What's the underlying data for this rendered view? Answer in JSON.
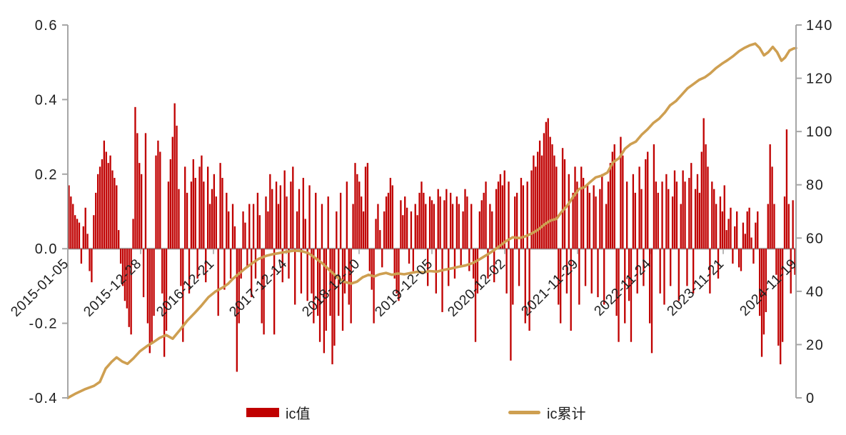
{
  "colors": {
    "bar": "#C00000",
    "line": "#CE9F51",
    "axis": "#A6A6A6",
    "text": "#1F1F1F",
    "background": "#FFFFFF"
  },
  "legend": {
    "bar_label": "ic值",
    "line_label": "ic累计"
  },
  "chart_data": {
    "type": "combo",
    "title": "",
    "legend_position": "bottom",
    "x_axis": {
      "tick_labels": [
        "2015-01-05",
        "2015-12-28",
        "2016-12-21",
        "2017-12-14",
        "2018-12-10",
        "2019-12-05",
        "2020-12-02",
        "2021-11-29",
        "2022-11-24",
        "2023-11-21",
        "2024-11-19"
      ],
      "label_rotation_deg": 45
    },
    "y_axis_left": {
      "min": -0.4,
      "max": 0.6,
      "step": 0.2,
      "tick_labels": [
        "0.6",
        "0.4",
        "0.2",
        "0.0",
        "-0.2",
        "-0.4"
      ]
    },
    "y_axis_right": {
      "min": 0,
      "max": 140,
      "step": 20,
      "tick_labels": [
        "140",
        "120",
        "100",
        "80",
        "60",
        "40",
        "20",
        "0"
      ]
    },
    "series": [
      {
        "name": "ic值",
        "type": "bar",
        "axis": "left",
        "color": "#C00000",
        "value_scale": 0.01,
        "values_x100": [
          17,
          14,
          12,
          9,
          8,
          7,
          -4,
          6,
          11,
          4,
          -6,
          -9,
          9,
          15,
          20,
          22,
          24,
          29,
          26,
          23,
          25,
          21,
          19,
          17,
          5,
          -4,
          -10,
          -14,
          -16,
          -21,
          -23,
          8,
          38,
          31,
          23,
          20,
          -13,
          31,
          -20,
          -28,
          -25,
          -18,
          25,
          29,
          26,
          -12,
          -29,
          -22,
          18,
          24,
          30,
          39,
          33,
          16,
          -10,
          -25,
          22,
          15,
          -12,
          18,
          24,
          19,
          -8,
          22,
          25,
          18,
          -9,
          22,
          12,
          16,
          20,
          14,
          -18,
          23,
          19,
          -11,
          15,
          10,
          -8,
          12,
          6,
          -33,
          -20,
          -8,
          10,
          7,
          -5,
          12,
          -13,
          12,
          -8,
          15,
          9,
          -20,
          -23,
          14,
          10,
          20,
          16,
          -23,
          18,
          12,
          17,
          -9,
          21,
          14,
          -8,
          18,
          22,
          -15,
          10,
          16,
          -12,
          19,
          8,
          -14,
          17,
          -12,
          -20,
          15,
          -18,
          -25,
          12,
          -28,
          -22,
          14,
          -18,
          -31,
          -26,
          10,
          -18,
          15,
          -22,
          -12,
          18,
          -15,
          -20,
          12,
          23,
          20,
          18,
          14,
          10,
          22,
          23,
          -6,
          -11,
          -20,
          8,
          12,
          5,
          -5,
          10,
          14,
          15,
          19,
          17,
          -8,
          -12,
          -14,
          13,
          9,
          14,
          11,
          -4,
          10,
          -6,
          12,
          9,
          15,
          18,
          15,
          12,
          -10,
          14,
          13,
          12,
          -12,
          16,
          14,
          -17,
          13,
          16,
          -10,
          15,
          12,
          -8,
          14,
          12,
          -5,
          10,
          16,
          14,
          -6,
          12,
          -8,
          -25,
          -12,
          10,
          13,
          15,
          18,
          -8,
          12,
          10,
          -9,
          16,
          18,
          20,
          17,
          21,
          -12,
          18,
          -30,
          -15,
          14,
          15,
          -10,
          19,
          17,
          -20,
          18,
          -22,
          21,
          25,
          22,
          26,
          29,
          25,
          31,
          34,
          35,
          30,
          28,
          25,
          22,
          -15,
          -20,
          27,
          24,
          -12,
          20,
          -22,
          15,
          22,
          18,
          -15,
          22,
          19,
          -10,
          17,
          15,
          -12,
          17,
          14,
          -13,
          16,
          20,
          -15,
          12,
          18,
          23,
          26,
          28,
          -18,
          -25,
          30,
          25,
          -20,
          18,
          -14,
          -25,
          20,
          15,
          -12,
          22,
          16,
          -10,
          24,
          26,
          -20,
          -28,
          28,
          18,
          15,
          -12,
          18,
          -15,
          20,
          16,
          -10,
          14,
          21,
          18,
          -14,
          12,
          21,
          18,
          -10,
          19,
          23,
          -12,
          16,
          20,
          15,
          26,
          35,
          28,
          22,
          -12,
          18,
          16,
          12,
          -8,
          14,
          10,
          17,
          5,
          8,
          11,
          -4,
          6,
          10,
          -5,
          -6,
          7,
          4,
          10,
          11,
          3,
          -4,
          7,
          10,
          -18,
          -29,
          -23,
          -17,
          12,
          28,
          22,
          12,
          -7,
          -26,
          -31,
          -25,
          14,
          32,
          12,
          -12,
          13,
          -7
        ]
      },
      {
        "name": "ic累计",
        "type": "line",
        "axis": "right",
        "color": "#CE9F51",
        "points_fx_value": [
          [
            0.0,
            0
          ],
          [
            0.01,
            1.5
          ],
          [
            0.023,
            3.2
          ],
          [
            0.036,
            4.5
          ],
          [
            0.044,
            6
          ],
          [
            0.052,
            11
          ],
          [
            0.06,
            13.5
          ],
          [
            0.067,
            15.2
          ],
          [
            0.075,
            13.6
          ],
          [
            0.082,
            12.8
          ],
          [
            0.09,
            14.8
          ],
          [
            0.099,
            17.5
          ],
          [
            0.109,
            19.5
          ],
          [
            0.118,
            21
          ],
          [
            0.126,
            22.5
          ],
          [
            0.135,
            23.6
          ],
          [
            0.144,
            22.2
          ],
          [
            0.154,
            25.5
          ],
          [
            0.164,
            29
          ],
          [
            0.174,
            31.8
          ],
          [
            0.183,
            34.5
          ],
          [
            0.193,
            37.8
          ],
          [
            0.203,
            40
          ],
          [
            0.213,
            41.5
          ],
          [
            0.22,
            42.8
          ],
          [
            0.227,
            44.8
          ],
          [
            0.235,
            46.6
          ],
          [
            0.243,
            48.5
          ],
          [
            0.252,
            50.3
          ],
          [
            0.262,
            52.2
          ],
          [
            0.272,
            53.3
          ],
          [
            0.281,
            53.9
          ],
          [
            0.291,
            54.4
          ],
          [
            0.301,
            54.9
          ],
          [
            0.311,
            55.3
          ],
          [
            0.321,
            55.1
          ],
          [
            0.33,
            54.4
          ],
          [
            0.34,
            52.5
          ],
          [
            0.35,
            50.4
          ],
          [
            0.36,
            47.8
          ],
          [
            0.37,
            45.3
          ],
          [
            0.379,
            43.6
          ],
          [
            0.389,
            42.9
          ],
          [
            0.397,
            43.6
          ],
          [
            0.405,
            45.3
          ],
          [
            0.413,
            46.2
          ],
          [
            0.421,
            45.6
          ],
          [
            0.428,
            46.4
          ],
          [
            0.437,
            46.9
          ],
          [
            0.445,
            46.2
          ],
          [
            0.453,
            46.7
          ],
          [
            0.462,
            46.4
          ],
          [
            0.471,
            46.9
          ],
          [
            0.479,
            47.3
          ],
          [
            0.488,
            47.1
          ],
          [
            0.497,
            47.6
          ],
          [
            0.507,
            47.4
          ],
          [
            0.517,
            48.1
          ],
          [
            0.527,
            48.6
          ],
          [
            0.536,
            49.2
          ],
          [
            0.546,
            49.7
          ],
          [
            0.556,
            50.6
          ],
          [
            0.566,
            52.1
          ],
          [
            0.575,
            53.6
          ],
          [
            0.584,
            55.2
          ],
          [
            0.593,
            57
          ],
          [
            0.602,
            58.9
          ],
          [
            0.611,
            60.3
          ],
          [
            0.62,
            60.0
          ],
          [
            0.628,
            60.6
          ],
          [
            0.637,
            61.7
          ],
          [
            0.646,
            63.2
          ],
          [
            0.655,
            65.2
          ],
          [
            0.663,
            66.6
          ],
          [
            0.671,
            67.2
          ],
          [
            0.678,
            69.8
          ],
          [
            0.686,
            72.2
          ],
          [
            0.694,
            75.5
          ],
          [
            0.702,
            78.4
          ],
          [
            0.71,
            79.2
          ],
          [
            0.718,
            81.2
          ],
          [
            0.725,
            82.8
          ],
          [
            0.733,
            83.4
          ],
          [
            0.741,
            84.6
          ],
          [
            0.749,
            88.5
          ],
          [
            0.757,
            90.0
          ],
          [
            0.765,
            93.5
          ],
          [
            0.773,
            95.3
          ],
          [
            0.78,
            96.2
          ],
          [
            0.788,
            98.8
          ],
          [
            0.796,
            100.8
          ],
          [
            0.804,
            103.2
          ],
          [
            0.812,
            104.8
          ],
          [
            0.82,
            107.2
          ],
          [
            0.827,
            109.8
          ],
          [
            0.835,
            111.4
          ],
          [
            0.843,
            113.8
          ],
          [
            0.851,
            116.2
          ],
          [
            0.859,
            117.8
          ],
          [
            0.867,
            119.4
          ],
          [
            0.875,
            120.4
          ],
          [
            0.882,
            121.8
          ],
          [
            0.89,
            123.8
          ],
          [
            0.898,
            125.4
          ],
          [
            0.906,
            126.8
          ],
          [
            0.914,
            128.4
          ],
          [
            0.922,
            130.2
          ],
          [
            0.929,
            131.4
          ],
          [
            0.937,
            132.4
          ],
          [
            0.944,
            133.0
          ],
          [
            0.95,
            131.4
          ],
          [
            0.956,
            128.6
          ],
          [
            0.962,
            129.8
          ],
          [
            0.968,
            131.8
          ],
          [
            0.974,
            129.8
          ],
          [
            0.98,
            126.6
          ],
          [
            0.985,
            127.8
          ],
          [
            0.991,
            130.4
          ],
          [
            0.997,
            131.2
          ],
          [
            1.0,
            131.3
          ]
        ]
      }
    ]
  }
}
